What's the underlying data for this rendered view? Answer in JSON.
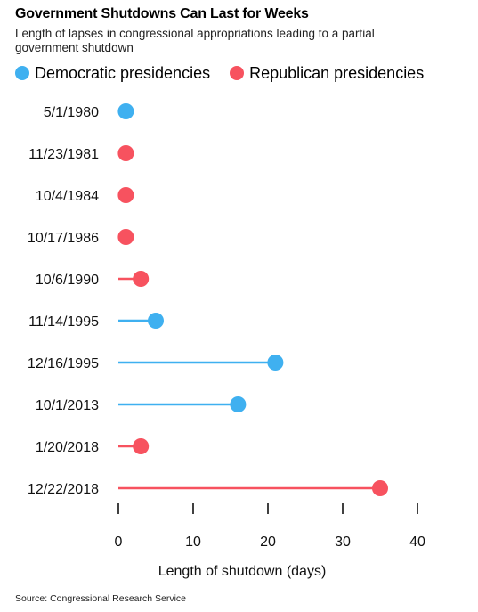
{
  "title": "Government Shutdowns Can Last for Weeks",
  "subtitle": "Length of lapses in congressional appropriations leading to a partial government shutdown",
  "source": "Source: Congressional Research Service",
  "colors": {
    "democratic": "#3fb0f0",
    "republican": "#f7525f"
  },
  "chart_data": {
    "type": "lollipop",
    "xlabel": "Length of shutdown (days)",
    "xlim": [
      0,
      40
    ],
    "xticks": [
      0,
      10,
      20,
      30,
      40
    ],
    "grid": false,
    "legend_position": "top-left",
    "legend": [
      {
        "label": "Democratic presidencies",
        "party": "democratic"
      },
      {
        "label": "Republican presidencies",
        "party": "republican"
      }
    ],
    "categories": [
      "5/1/1980",
      "11/23/1981",
      "10/4/1984",
      "10/17/1986",
      "10/6/1990",
      "11/14/1995",
      "12/16/1995",
      "10/1/2013",
      "1/20/2018",
      "12/22/2018"
    ],
    "values": [
      1,
      1,
      1,
      1,
      3,
      5,
      21,
      16,
      3,
      35
    ],
    "party": [
      "democratic",
      "republican",
      "republican",
      "republican",
      "republican",
      "democratic",
      "democratic",
      "democratic",
      "republican",
      "republican"
    ]
  }
}
